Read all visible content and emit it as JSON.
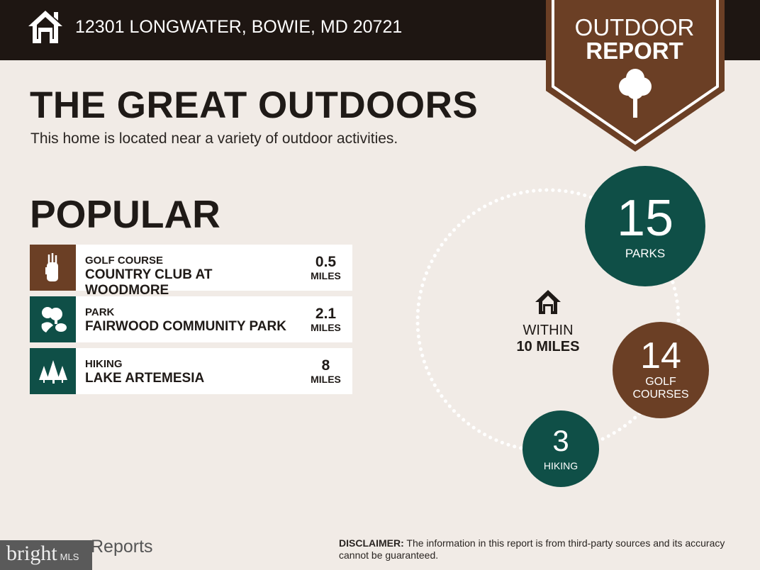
{
  "header": {
    "address": "12301 LONGWATER, BOWIE, MD 20721",
    "icon": "home-icon"
  },
  "badge": {
    "line1": "OUTDOOR",
    "line2": "REPORT",
    "icon": "tree-icon"
  },
  "title": "THE GREAT OUTDOORS",
  "subtitle": "This home is located near a variety of outdoor activities.",
  "popular": {
    "heading": "POPULAR",
    "items": [
      {
        "category": "GOLF COURSE",
        "name": "COUNTRY CLUB AT WOODMORE",
        "distance": "0.5",
        "unit": "MILES",
        "icon": "golf-bag-icon",
        "color": "#6b3f25"
      },
      {
        "category": "PARK",
        "name": "FAIRWOOD COMMUNITY PARK",
        "distance": "2.1",
        "unit": "MILES",
        "icon": "park-icon",
        "color": "#0f4f47"
      },
      {
        "category": "HIKING",
        "name": "LAKE ARTEMESIA",
        "distance": "8",
        "unit": "MILES",
        "icon": "pine-trees-icon",
        "color": "#0f4f47"
      }
    ]
  },
  "summary": {
    "within_line1": "WITHIN",
    "within_line2": "10 MILES",
    "parks": {
      "count": "15",
      "label": "PARKS"
    },
    "golf": {
      "count": "14",
      "label1": "GOLF",
      "label2": "COURSES"
    },
    "hiking": {
      "count": "3",
      "label": "HIKING"
    }
  },
  "footer": {
    "disclaimer_label": "DISCLAIMER:",
    "disclaimer": " The information in this report is from third-party sources and its accuracy cannot be guaranteed.",
    "reports": "Reports",
    "watermark": "bright",
    "watermark_mls": "MLS"
  },
  "colors": {
    "brown": "#6b3f25",
    "teal": "#0f4f47",
    "header": "#1e1612",
    "background": "#f1ebe6"
  }
}
